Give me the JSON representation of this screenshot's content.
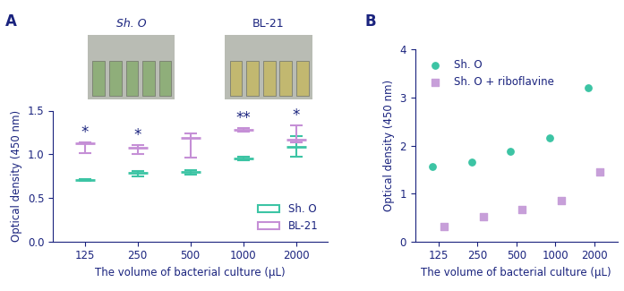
{
  "chart_data": [
    {
      "type": "box",
      "title": "A",
      "x_label": "The volume of bacterial culture (µL)",
      "y_label": "Optical density (450 nm)",
      "categories": [
        "125",
        "250",
        "500",
        "1000",
        "2000"
      ],
      "series": [
        {
          "name": "Sh. O",
          "color": "#3cc4a4",
          "values": [
            0.71,
            0.79,
            0.8,
            0.95,
            1.08
          ],
          "low": [
            0.7,
            0.75,
            0.77,
            0.93,
            0.97
          ],
          "high": [
            0.72,
            0.81,
            0.82,
            0.97,
            1.21
          ]
        },
        {
          "name": "BL-21",
          "color": "#c58fd6",
          "values": [
            1.13,
            1.07,
            1.19,
            1.28,
            1.17
          ],
          "low": [
            1.01,
            1.0,
            0.96,
            1.26,
            1.14
          ],
          "high": [
            1.14,
            1.11,
            1.24,
            1.3,
            1.33
          ]
        }
      ],
      "ylim": [
        0,
        1.5
      ],
      "yticks": [
        {
          "value": 0,
          "label": "0.0"
        },
        {
          "value": 0.5,
          "label": "0.5"
        },
        {
          "value": 1.0,
          "label": "1.0"
        },
        {
          "value": 1.5,
          "label": "1.5"
        }
      ],
      "legend": "lower right",
      "annotations": [
        {
          "category": "125",
          "text": "*"
        },
        {
          "category": "250",
          "text": "*"
        },
        {
          "category": "1000",
          "text": "**"
        },
        {
          "category": "2000",
          "text": "*"
        }
      ],
      "photo_labels": [
        "Sh. O",
        "BL-21"
      ]
    },
    {
      "type": "scatter",
      "title": "B",
      "x_label": "The volume of bacterial culture (µL)",
      "y_label": "Optical density (450 nm)",
      "categories": [
        "125",
        "250",
        "500",
        "1000",
        "2000"
      ],
      "series": [
        {
          "name": "Sh. O",
          "color": "#3cc4a4",
          "marker": "o",
          "values": [
            1.57,
            1.65,
            1.87,
            2.15,
            3.2
          ]
        },
        {
          "name": "Sh. O + riboflavine",
          "color": "#c79fd9",
          "marker": "s",
          "values": [
            0.32,
            0.52,
            0.67,
            0.85,
            1.45
          ]
        }
      ],
      "ylim": [
        0,
        4
      ],
      "yticks": [
        0,
        1,
        2,
        3,
        4
      ],
      "legend": "upper left"
    }
  ]
}
